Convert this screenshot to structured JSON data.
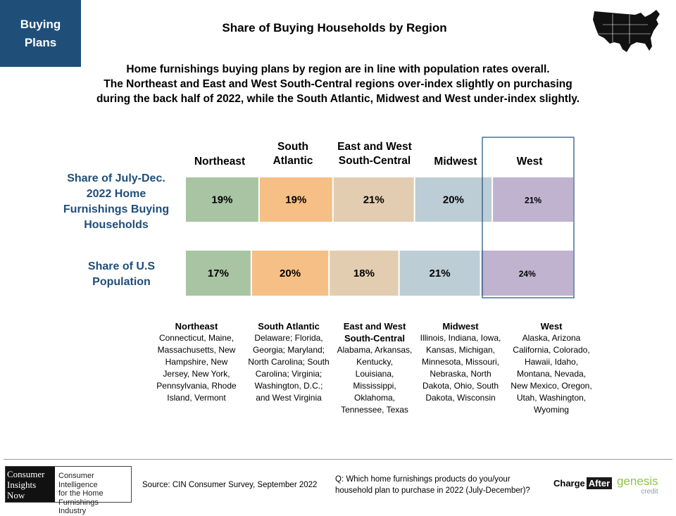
{
  "badge": {
    "line1": "Buying",
    "line2": "Plans"
  },
  "title": "Share of Buying Households by Region",
  "subtitle": [
    "Home furnishings buying plans by region are in line with population rates overall.",
    "The Northeast and East and West South-Central regions over-index slightly on purchasing",
    "during the back half of 2022, while the South Atlantic, Midwest and West under-index slightly."
  ],
  "region_headers": {
    "northeast": "Northeast",
    "south_atlantic_1": "South",
    "south_atlantic_2": "Atlantic",
    "ews_central_1": "East and West",
    "ews_central_2": "South-Central",
    "midwest": "Midwest",
    "west": "West"
  },
  "row_labels": {
    "buying_1": "Share of July-Dec.",
    "buying_2": "2022 Home",
    "buying_3": "Furnishings Buying",
    "buying_4": "Households",
    "population_1": "Share of U.S",
    "population_2": "Population"
  },
  "chart_data": {
    "type": "bar",
    "orientation": "horizontal-stacked",
    "title": "Share of Buying Households by Region",
    "categories": [
      "Share of July-Dec. 2022 Home Furnishings Buying Households",
      "Share of U.S Population"
    ],
    "series": [
      {
        "name": "Northeast",
        "values": [
          19,
          17
        ],
        "labels": [
          "19%",
          "17%"
        ],
        "color": "#a9c4a2"
      },
      {
        "name": "South Atlantic",
        "values": [
          19,
          20
        ],
        "labels": [
          "19%",
          "20%"
        ],
        "color": "#f6bf85"
      },
      {
        "name": "East and West South-Central",
        "values": [
          21,
          18
        ],
        "labels": [
          "21%",
          "18%"
        ],
        "color": "#e2cdb0"
      },
      {
        "name": "Midwest",
        "values": [
          20,
          21
        ],
        "labels": [
          "20%",
          "21%"
        ],
        "color": "#bccdd6"
      },
      {
        "name": "West",
        "values": [
          21,
          24
        ],
        "labels": [
          "21%",
          "24%"
        ],
        "color": "#bfb3cf"
      }
    ],
    "highlight": "West"
  },
  "region_descriptions": [
    {
      "name": "Northeast",
      "states": "Connecticut, Maine, Massachusetts, New Hampshire, New Jersey, New York, Pennsylvania, Rhode Island, Vermont"
    },
    {
      "name": "South Atlantic",
      "states": "Delaware; Florida, Georgia; Maryland; North Carolina; South Carolina; Virginia; Washington, D.C.; and West Virginia"
    },
    {
      "name": "East and West South-Central",
      "states": "Alabama, Arkansas, Kentucky, Louisiana, Mississippi, Oklahoma, Tennessee, Texas"
    },
    {
      "name": "Midwest",
      "states": "Illinois, Indiana, Iowa, Kansas, Michigan, Minnesota, Missouri, Nebraska, North Dakota, Ohio, South Dakota, Wisconsin"
    },
    {
      "name": "West",
      "states": "Alaska, Arizona California, Colorado, Hawaii, Idaho, Montana, Nevada, New Mexico, Oregon, Utah, Washington, Wyoming"
    }
  ],
  "footer": {
    "cin_logo_1": "Consumer",
    "cin_logo_2": "Insights",
    "cin_logo_3": "Now",
    "cin_tagline_1": "Consumer Intelligence",
    "cin_tagline_2": "for the Home",
    "cin_tagline_3": "Furnishings Industry",
    "source": "Source: CIN Consumer Survey, September  2022",
    "question_1": "Q: Which home furnishings products do you/your",
    "question_2": "household plan to purchase in 2022 (July-December)?",
    "chargeafter_1": "Charge",
    "chargeafter_2": "After",
    "genesis_1": "genesis",
    "genesis_2": "credit"
  },
  "icons": {
    "map": "us-map-icon"
  }
}
